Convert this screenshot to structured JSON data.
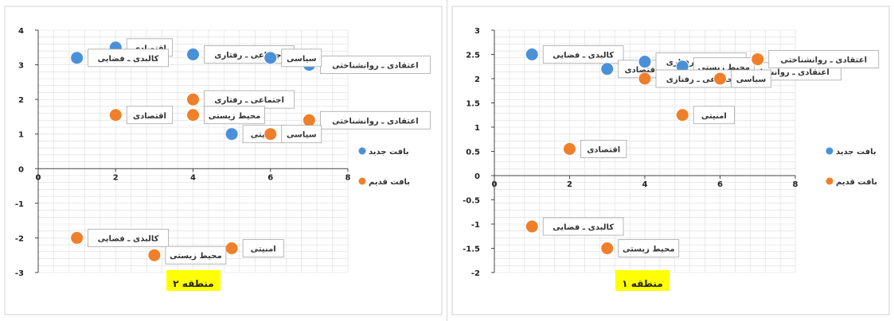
{
  "colors": {
    "new": "#4a90d9",
    "old": "#f07f2a",
    "title_bg": "#ffff00",
    "grid": "#dcdcdc",
    "axis": "#444444"
  },
  "chart_data": [
    {
      "type": "scatter",
      "title": "منطقه ۲",
      "xlim": [
        0,
        8
      ],
      "ylim": [
        -3,
        4
      ],
      "x_ticks": [
        0,
        2,
        4,
        6,
        8
      ],
      "y_ticks": [
        -3,
        -2,
        -1,
        0,
        1,
        2,
        3,
        4
      ],
      "grid": true,
      "legend_position": "right",
      "series": [
        {
          "name": "بافت جدید",
          "color": "#4a90d9",
          "points": [
            {
              "x": 2,
              "y": 3.5,
              "label": "اقتصادی"
            },
            {
              "x": 1,
              "y": 3.2,
              "label": "کالبدی ـ فضایی"
            },
            {
              "x": 4,
              "y": 3.3,
              "label": "اجتماعی ـ رفتاری"
            },
            {
              "x": 7,
              "y": 3.0,
              "label": "اعتقادی ـ روانشناختی"
            },
            {
              "x": 6,
              "y": 3.2,
              "label": "سیاسی"
            },
            {
              "x": 5,
              "y": 1.0,
              "label": "امنیتی"
            }
          ]
        },
        {
          "name": "بافت قدیم",
          "color": "#f07f2a",
          "points": [
            {
              "x": 4,
              "y": 2.0,
              "label": "اجتماعی ـ رفتاری"
            },
            {
              "x": 2,
              "y": 1.55,
              "label": "اقتصادی"
            },
            {
              "x": 7,
              "y": 1.4,
              "label": "اعتقادی ـ روانشناختی"
            },
            {
              "x": 6,
              "y": 1.0,
              "label": "سیاسی"
            },
            {
              "x": 4,
              "y": 1.55,
              "label": "محیط زیستی"
            },
            {
              "x": 1,
              "y": -2.0,
              "label": "کالبدی ـ فضایی"
            },
            {
              "x": 5,
              "y": -2.3,
              "label": "امنیتی"
            },
            {
              "x": 3,
              "y": -2.5,
              "label": "محیط زیستی"
            }
          ]
        }
      ]
    },
    {
      "type": "scatter",
      "title": "منطقه ۱",
      "xlim": [
        0,
        8
      ],
      "ylim": [
        -2,
        3
      ],
      "x_ticks": [
        0,
        2,
        4,
        6,
        8
      ],
      "y_ticks": [
        -2,
        -1.5,
        -1,
        -0.5,
        0,
        0.5,
        1,
        1.5,
        2,
        2.5,
        3
      ],
      "grid": true,
      "legend_position": "right",
      "series": [
        {
          "name": "بافت جدید",
          "color": "#4a90d9",
          "points": [
            {
              "x": 1,
              "y": 2.5,
              "label": "کالبدی ـ فضایی"
            },
            {
              "x": 3,
              "y": 2.2,
              "label": "اقتصادی"
            },
            {
              "x": 4,
              "y": 2.35,
              "label": "اجتماعی ـ رفتاری"
            },
            {
              "x": 6,
              "y": 2.15,
              "label": "اعتقادی ـ روانشناختی"
            },
            {
              "x": 5,
              "y": 2.25,
              "label": "محیط زیستی"
            }
          ]
        },
        {
          "name": "بافت قدیم",
          "color": "#f07f2a",
          "points": [
            {
              "x": 7,
              "y": 2.4,
              "label": "اعتقادی ـ روانشناختی"
            },
            {
              "x": 4,
              "y": 2.0,
              "label": "اجتماعی ـ رفتاری"
            },
            {
              "x": 6,
              "y": 2.0,
              "label": "سیاسی"
            },
            {
              "x": 5,
              "y": 1.25,
              "label": "امنیتی"
            },
            {
              "x": 2,
              "y": 0.55,
              "label": "اقتصادی"
            },
            {
              "x": 1,
              "y": -1.05,
              "label": "کالبدی ـ فضایی"
            },
            {
              "x": 3,
              "y": -1.5,
              "label": "محیط زیستی"
            }
          ]
        }
      ]
    }
  ]
}
